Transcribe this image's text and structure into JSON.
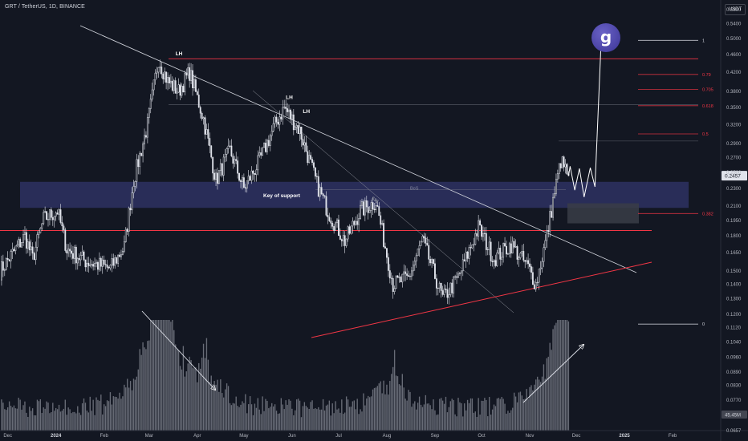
{
  "header": {
    "title": "GRT / TetherUS, 1D, BINANCE",
    "currency": "USDT"
  },
  "logo": {
    "text": "g"
  },
  "colors": {
    "background": "#131722",
    "candle": "#e0e3eb",
    "trendline": "#d1d4dc",
    "red_level": "#f23645",
    "support_zone": "#2a2e5c",
    "grid": "#2a2e39"
  },
  "chart_data": {
    "type": "candlestick",
    "symbol": "GRT / TetherUS",
    "interval": "1D",
    "exchange": "BINANCE",
    "y_scale": "log",
    "ylim": [
      0.0657,
      0.59
    ],
    "y_ticks": [
      0.58,
      0.54,
      0.5,
      0.46,
      0.42,
      0.38,
      0.35,
      0.32,
      0.29,
      0.27,
      0.25,
      0.23,
      0.21,
      0.195,
      0.18,
      0.165,
      0.15,
      0.14,
      0.13,
      0.12,
      0.112,
      0.104,
      0.096,
      0.089,
      0.083,
      0.077,
      0.0657
    ],
    "x_ticks": [
      "Dec",
      "2024",
      "Feb",
      "Mar",
      "Apr",
      "May",
      "Jun",
      "Jul",
      "Aug",
      "Sep",
      "Oct",
      "Nov",
      "Dec",
      "2025",
      "Feb"
    ],
    "x_range": [
      "2023-11-26",
      "2025-02-18"
    ],
    "price_path": [
      {
        "date": "2023-11-26",
        "price": 0.15
      },
      {
        "date": "2023-12-05",
        "price": 0.166
      },
      {
        "date": "2023-12-12",
        "price": 0.18
      },
      {
        "date": "2023-12-17",
        "price": 0.16
      },
      {
        "date": "2023-12-24",
        "price": 0.196
      },
      {
        "date": "2024-01-02",
        "price": 0.205
      },
      {
        "date": "2024-01-08",
        "price": 0.168
      },
      {
        "date": "2024-01-20",
        "price": 0.158
      },
      {
        "date": "2024-02-05",
        "price": 0.152
      },
      {
        "date": "2024-02-14",
        "price": 0.17
      },
      {
        "date": "2024-02-20",
        "price": 0.24
      },
      {
        "date": "2024-02-29",
        "price": 0.32
      },
      {
        "date": "2024-03-07",
        "price": 0.45
      },
      {
        "date": "2024-03-13",
        "price": 0.4
      },
      {
        "date": "2024-03-20",
        "price": 0.38
      },
      {
        "date": "2024-03-27",
        "price": 0.42
      },
      {
        "date": "2024-04-05",
        "price": 0.33
      },
      {
        "date": "2024-04-13",
        "price": 0.24
      },
      {
        "date": "2024-04-22",
        "price": 0.28
      },
      {
        "date": "2024-05-01",
        "price": 0.23
      },
      {
        "date": "2024-05-11",
        "price": 0.265
      },
      {
        "date": "2024-05-21",
        "price": 0.32
      },
      {
        "date": "2024-05-27",
        "price": 0.35
      },
      {
        "date": "2024-06-06",
        "price": 0.31
      },
      {
        "date": "2024-06-17",
        "price": 0.235
      },
      {
        "date": "2024-06-24",
        "price": 0.205
      },
      {
        "date": "2024-07-05",
        "price": 0.175
      },
      {
        "date": "2024-07-15",
        "price": 0.205
      },
      {
        "date": "2024-07-25",
        "price": 0.215
      },
      {
        "date": "2024-08-05",
        "price": 0.14
      },
      {
        "date": "2024-08-15",
        "price": 0.145
      },
      {
        "date": "2024-08-24",
        "price": 0.176
      },
      {
        "date": "2024-09-06",
        "price": 0.13
      },
      {
        "date": "2024-09-16",
        "price": 0.145
      },
      {
        "date": "2024-09-29",
        "price": 0.188
      },
      {
        "date": "2024-10-09",
        "price": 0.16
      },
      {
        "date": "2024-10-20",
        "price": 0.172
      },
      {
        "date": "2024-10-31",
        "price": 0.153
      },
      {
        "date": "2024-11-05",
        "price": 0.14
      },
      {
        "date": "2024-11-12",
        "price": 0.18
      },
      {
        "date": "2024-11-17",
        "price": 0.226
      },
      {
        "date": "2024-11-21",
        "price": 0.265
      },
      {
        "date": "2024-11-26",
        "price": 0.2457
      }
    ],
    "last_price": 0.2457,
    "volume_label": "45.45M",
    "support_zone": {
      "label": "Key of support",
      "from": 0.208,
      "to": 0.238
    },
    "red_levels": [
      0.45,
      0.185
    ],
    "grey_levels": [
      0.355,
      0.294
    ],
    "fib_levels": [
      {
        "label": "1",
        "price": 0.495
      },
      {
        "label": "0.79",
        "price": 0.415
      },
      {
        "label": "0.705",
        "price": 0.384
      },
      {
        "label": "0.618",
        "price": 0.353
      },
      {
        "label": "0.5",
        "price": 0.305
      },
      {
        "label": "0.382",
        "price": 0.202
      },
      {
        "label": "0",
        "price": 0.114
      }
    ],
    "annotations": [
      {
        "text": "LH",
        "date": "2024-03-18",
        "price": 0.458
      },
      {
        "text": "LH",
        "date": "2024-05-28",
        "price": 0.365
      },
      {
        "text": "LH",
        "date": "2024-06-08",
        "price": 0.34
      },
      {
        "text": "BoS",
        "date": "2024-08-16",
        "price": 0.2285
      },
      {
        "text": "$$$",
        "date": "2024-07-22",
        "price": 0.218
      }
    ],
    "projection": [
      {
        "date": "2024-11-27",
        "price": 0.258
      },
      {
        "date": "2024-11-30",
        "price": 0.228
      },
      {
        "date": "2024-12-03",
        "price": 0.255
      },
      {
        "date": "2024-12-06",
        "price": 0.22
      },
      {
        "date": "2024-12-10",
        "price": 0.256
      },
      {
        "date": "2024-12-13",
        "price": 0.232
      },
      {
        "date": "2024-12-17",
        "price": 0.495
      }
    ]
  }
}
